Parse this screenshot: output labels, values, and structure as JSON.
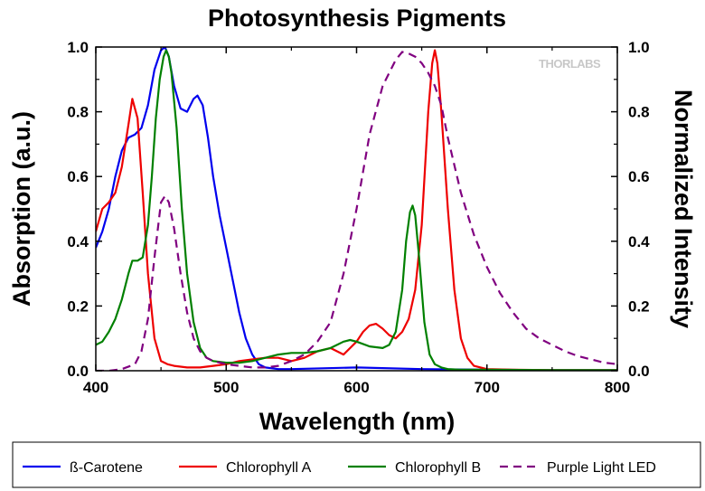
{
  "chart_data": {
    "type": "line",
    "title": "Photosynthesis Pigments",
    "xlabel": "Wavelength (nm)",
    "ylabel": "Absorption (a.u.)",
    "ylabel_right": "Normalized Intensity",
    "xlim": [
      400,
      800
    ],
    "ylim": [
      0,
      1.0
    ],
    "ylim_right": [
      0,
      1.0
    ],
    "x_ticks": [
      400,
      500,
      600,
      700,
      800
    ],
    "y_ticks": [
      0.0,
      0.2,
      0.4,
      0.6,
      0.8,
      1.0
    ],
    "x_tick_labels": [
      "400",
      "500",
      "600",
      "700",
      "800"
    ],
    "y_tick_labels": [
      "0.0",
      "0.2",
      "0.4",
      "0.6",
      "0.8",
      "1.0"
    ],
    "y_right_tick_labels": [
      "0.0",
      "0.2",
      "0.4",
      "0.6",
      "0.8",
      "1.0"
    ],
    "watermark": "THORLABS",
    "grid": false,
    "legend_position": "bottom",
    "series": [
      {
        "name": "ß-Carotene",
        "color": "#0000ee",
        "dash": "solid",
        "axis": "left",
        "x": [
          400,
          405,
          410,
          415,
          420,
          425,
          430,
          435,
          440,
          445,
          450,
          453,
          456,
          460,
          465,
          470,
          475,
          478,
          482,
          486,
          490,
          495,
          500,
          505,
          510,
          515,
          520,
          525,
          530,
          540,
          550,
          600,
          650,
          700,
          750,
          800
        ],
        "y": [
          0.38,
          0.43,
          0.5,
          0.6,
          0.68,
          0.72,
          0.73,
          0.75,
          0.82,
          0.93,
          0.99,
          1.0,
          0.97,
          0.88,
          0.81,
          0.8,
          0.84,
          0.85,
          0.82,
          0.72,
          0.6,
          0.48,
          0.38,
          0.28,
          0.18,
          0.1,
          0.05,
          0.02,
          0.01,
          0.005,
          0.005,
          0.01,
          0.005,
          0.003,
          0.002,
          0.002
        ]
      },
      {
        "name": "Chlorophyll A",
        "color": "#ee0000",
        "dash": "solid",
        "axis": "left",
        "x": [
          400,
          405,
          410,
          415,
          420,
          425,
          428,
          432,
          436,
          440,
          445,
          450,
          455,
          460,
          470,
          480,
          490,
          500,
          510,
          520,
          530,
          540,
          550,
          560,
          570,
          580,
          590,
          600,
          605,
          610,
          615,
          620,
          625,
          630,
          635,
          640,
          645,
          650,
          655,
          658,
          660,
          662,
          665,
          670,
          675,
          680,
          685,
          690,
          700,
          720,
          750,
          800
        ],
        "y": [
          0.43,
          0.5,
          0.52,
          0.55,
          0.63,
          0.76,
          0.84,
          0.78,
          0.55,
          0.3,
          0.1,
          0.03,
          0.02,
          0.015,
          0.01,
          0.01,
          0.015,
          0.02,
          0.03,
          0.035,
          0.04,
          0.04,
          0.03,
          0.04,
          0.06,
          0.07,
          0.05,
          0.09,
          0.12,
          0.14,
          0.145,
          0.13,
          0.11,
          0.1,
          0.12,
          0.16,
          0.25,
          0.45,
          0.8,
          0.95,
          0.99,
          0.95,
          0.8,
          0.5,
          0.25,
          0.1,
          0.04,
          0.015,
          0.005,
          0.003,
          0.002,
          0.002
        ]
      },
      {
        "name": "Chlorophyll B",
        "color": "#008000",
        "dash": "solid",
        "axis": "left",
        "x": [
          400,
          405,
          410,
          415,
          420,
          425,
          428,
          432,
          436,
          440,
          443,
          446,
          449,
          452,
          454,
          456,
          458,
          462,
          466,
          470,
          475,
          480,
          485,
          490,
          500,
          510,
          520,
          530,
          540,
          550,
          560,
          570,
          580,
          590,
          595,
          600,
          610,
          620,
          625,
          630,
          635,
          638,
          641,
          643,
          645,
          648,
          652,
          656,
          660,
          665,
          670,
          680,
          700,
          750,
          800
        ],
        "y": [
          0.08,
          0.09,
          0.12,
          0.16,
          0.22,
          0.3,
          0.34,
          0.34,
          0.35,
          0.45,
          0.6,
          0.78,
          0.9,
          0.97,
          0.99,
          0.97,
          0.92,
          0.75,
          0.5,
          0.3,
          0.15,
          0.07,
          0.04,
          0.03,
          0.025,
          0.025,
          0.03,
          0.04,
          0.05,
          0.055,
          0.055,
          0.06,
          0.07,
          0.09,
          0.095,
          0.09,
          0.075,
          0.07,
          0.08,
          0.12,
          0.25,
          0.4,
          0.49,
          0.51,
          0.48,
          0.35,
          0.15,
          0.05,
          0.02,
          0.01,
          0.005,
          0.003,
          0.003,
          0.002,
          0.002
        ]
      },
      {
        "name": "Purple Light LED",
        "color": "#800080",
        "dash": "dashed",
        "axis": "right",
        "x": [
          400,
          410,
          420,
          430,
          435,
          440,
          445,
          450,
          453,
          456,
          460,
          465,
          470,
          475,
          480,
          485,
          490,
          500,
          510,
          520,
          530,
          540,
          550,
          560,
          570,
          580,
          590,
          600,
          610,
          620,
          630,
          635,
          640,
          645,
          650,
          655,
          660,
          665,
          670,
          680,
          690,
          700,
          710,
          720,
          730,
          740,
          750,
          760,
          770,
          780,
          790,
          800
        ],
        "y": [
          0.0,
          0.0,
          0.005,
          0.02,
          0.06,
          0.16,
          0.35,
          0.52,
          0.54,
          0.52,
          0.44,
          0.3,
          0.18,
          0.1,
          0.06,
          0.04,
          0.03,
          0.02,
          0.015,
          0.01,
          0.01,
          0.015,
          0.03,
          0.05,
          0.09,
          0.15,
          0.3,
          0.5,
          0.73,
          0.88,
          0.96,
          0.985,
          0.98,
          0.97,
          0.95,
          0.92,
          0.88,
          0.82,
          0.72,
          0.55,
          0.42,
          0.32,
          0.24,
          0.18,
          0.13,
          0.1,
          0.08,
          0.06,
          0.045,
          0.035,
          0.025,
          0.02
        ]
      }
    ]
  }
}
